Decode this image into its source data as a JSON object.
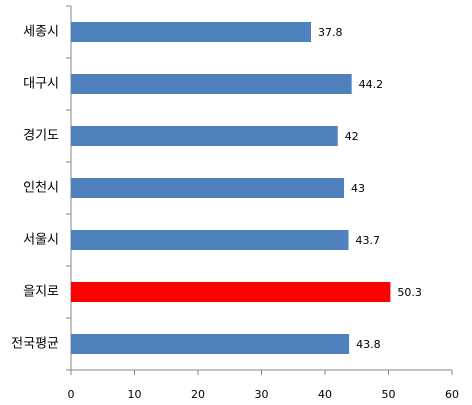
{
  "chart_data": {
    "type": "bar",
    "orientation": "horizontal",
    "categories": [
      "세종시",
      "대구시",
      "경기도",
      "인천시",
      "서울시",
      "을지로",
      "전국평균"
    ],
    "values": [
      37.8,
      44.2,
      42,
      43,
      43.7,
      50.3,
      43.8
    ],
    "colors": [
      "#4f81bd",
      "#4f81bd",
      "#4f81bd",
      "#4f81bd",
      "#4f81bd",
      "#ff0000",
      "#4f81bd"
    ],
    "xlim": [
      0,
      60
    ],
    "xticks": [
      0,
      10,
      20,
      30,
      40,
      50,
      60
    ],
    "grid": false
  }
}
